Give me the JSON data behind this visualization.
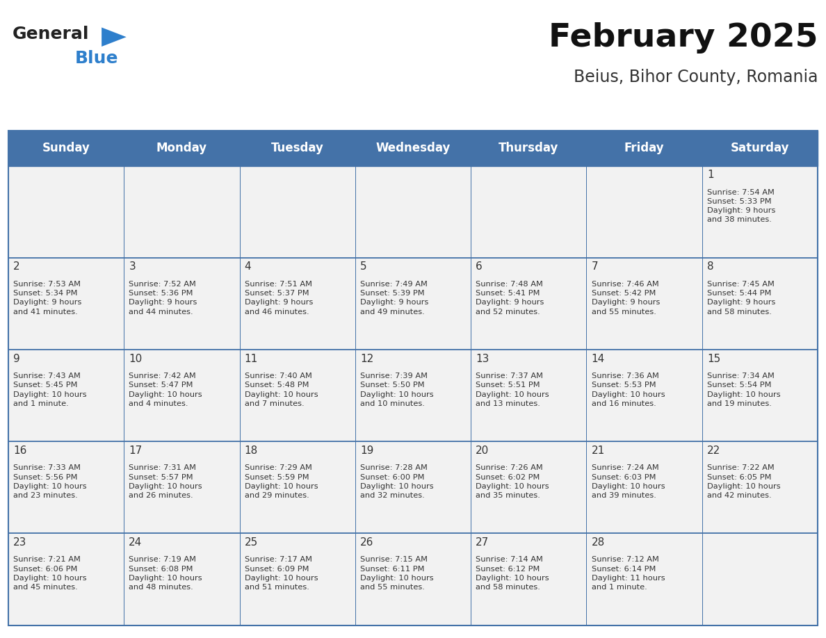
{
  "title": "February 2025",
  "subtitle": "Beius, Bihor County, Romania",
  "days_of_week": [
    "Sunday",
    "Monday",
    "Tuesday",
    "Wednesday",
    "Thursday",
    "Friday",
    "Saturday"
  ],
  "header_bg": "#4472a8",
  "header_text": "#ffffff",
  "cell_bg_light": "#f2f2f2",
  "border_color": "#4472a8",
  "text_color": "#333333",
  "day_num_color": "#333333",
  "calendar_data": [
    [
      null,
      null,
      null,
      null,
      null,
      null,
      {
        "day": 1,
        "sunrise": "7:54 AM",
        "sunset": "5:33 PM",
        "daylight": "9 hours\nand 38 minutes."
      }
    ],
    [
      {
        "day": 2,
        "sunrise": "7:53 AM",
        "sunset": "5:34 PM",
        "daylight": "9 hours\nand 41 minutes."
      },
      {
        "day": 3,
        "sunrise": "7:52 AM",
        "sunset": "5:36 PM",
        "daylight": "9 hours\nand 44 minutes."
      },
      {
        "day": 4,
        "sunrise": "7:51 AM",
        "sunset": "5:37 PM",
        "daylight": "9 hours\nand 46 minutes."
      },
      {
        "day": 5,
        "sunrise": "7:49 AM",
        "sunset": "5:39 PM",
        "daylight": "9 hours\nand 49 minutes."
      },
      {
        "day": 6,
        "sunrise": "7:48 AM",
        "sunset": "5:41 PM",
        "daylight": "9 hours\nand 52 minutes."
      },
      {
        "day": 7,
        "sunrise": "7:46 AM",
        "sunset": "5:42 PM",
        "daylight": "9 hours\nand 55 minutes."
      },
      {
        "day": 8,
        "sunrise": "7:45 AM",
        "sunset": "5:44 PM",
        "daylight": "9 hours\nand 58 minutes."
      }
    ],
    [
      {
        "day": 9,
        "sunrise": "7:43 AM",
        "sunset": "5:45 PM",
        "daylight": "10 hours\nand 1 minute."
      },
      {
        "day": 10,
        "sunrise": "7:42 AM",
        "sunset": "5:47 PM",
        "daylight": "10 hours\nand 4 minutes."
      },
      {
        "day": 11,
        "sunrise": "7:40 AM",
        "sunset": "5:48 PM",
        "daylight": "10 hours\nand 7 minutes."
      },
      {
        "day": 12,
        "sunrise": "7:39 AM",
        "sunset": "5:50 PM",
        "daylight": "10 hours\nand 10 minutes."
      },
      {
        "day": 13,
        "sunrise": "7:37 AM",
        "sunset": "5:51 PM",
        "daylight": "10 hours\nand 13 minutes."
      },
      {
        "day": 14,
        "sunrise": "7:36 AM",
        "sunset": "5:53 PM",
        "daylight": "10 hours\nand 16 minutes."
      },
      {
        "day": 15,
        "sunrise": "7:34 AM",
        "sunset": "5:54 PM",
        "daylight": "10 hours\nand 19 minutes."
      }
    ],
    [
      {
        "day": 16,
        "sunrise": "7:33 AM",
        "sunset": "5:56 PM",
        "daylight": "10 hours\nand 23 minutes."
      },
      {
        "day": 17,
        "sunrise": "7:31 AM",
        "sunset": "5:57 PM",
        "daylight": "10 hours\nand 26 minutes."
      },
      {
        "day": 18,
        "sunrise": "7:29 AM",
        "sunset": "5:59 PM",
        "daylight": "10 hours\nand 29 minutes."
      },
      {
        "day": 19,
        "sunrise": "7:28 AM",
        "sunset": "6:00 PM",
        "daylight": "10 hours\nand 32 minutes."
      },
      {
        "day": 20,
        "sunrise": "7:26 AM",
        "sunset": "6:02 PM",
        "daylight": "10 hours\nand 35 minutes."
      },
      {
        "day": 21,
        "sunrise": "7:24 AM",
        "sunset": "6:03 PM",
        "daylight": "10 hours\nand 39 minutes."
      },
      {
        "day": 22,
        "sunrise": "7:22 AM",
        "sunset": "6:05 PM",
        "daylight": "10 hours\nand 42 minutes."
      }
    ],
    [
      {
        "day": 23,
        "sunrise": "7:21 AM",
        "sunset": "6:06 PM",
        "daylight": "10 hours\nand 45 minutes."
      },
      {
        "day": 24,
        "sunrise": "7:19 AM",
        "sunset": "6:08 PM",
        "daylight": "10 hours\nand 48 minutes."
      },
      {
        "day": 25,
        "sunrise": "7:17 AM",
        "sunset": "6:09 PM",
        "daylight": "10 hours\nand 51 minutes."
      },
      {
        "day": 26,
        "sunrise": "7:15 AM",
        "sunset": "6:11 PM",
        "daylight": "10 hours\nand 55 minutes."
      },
      {
        "day": 27,
        "sunrise": "7:14 AM",
        "sunset": "6:12 PM",
        "daylight": "10 hours\nand 58 minutes."
      },
      {
        "day": 28,
        "sunrise": "7:12 AM",
        "sunset": "6:14 PM",
        "daylight": "11 hours\nand 1 minute."
      },
      null
    ]
  ],
  "logo_general_color": "#222222",
  "logo_blue_color": "#2e7fcc",
  "logo_triangle_color": "#2e7fcc"
}
